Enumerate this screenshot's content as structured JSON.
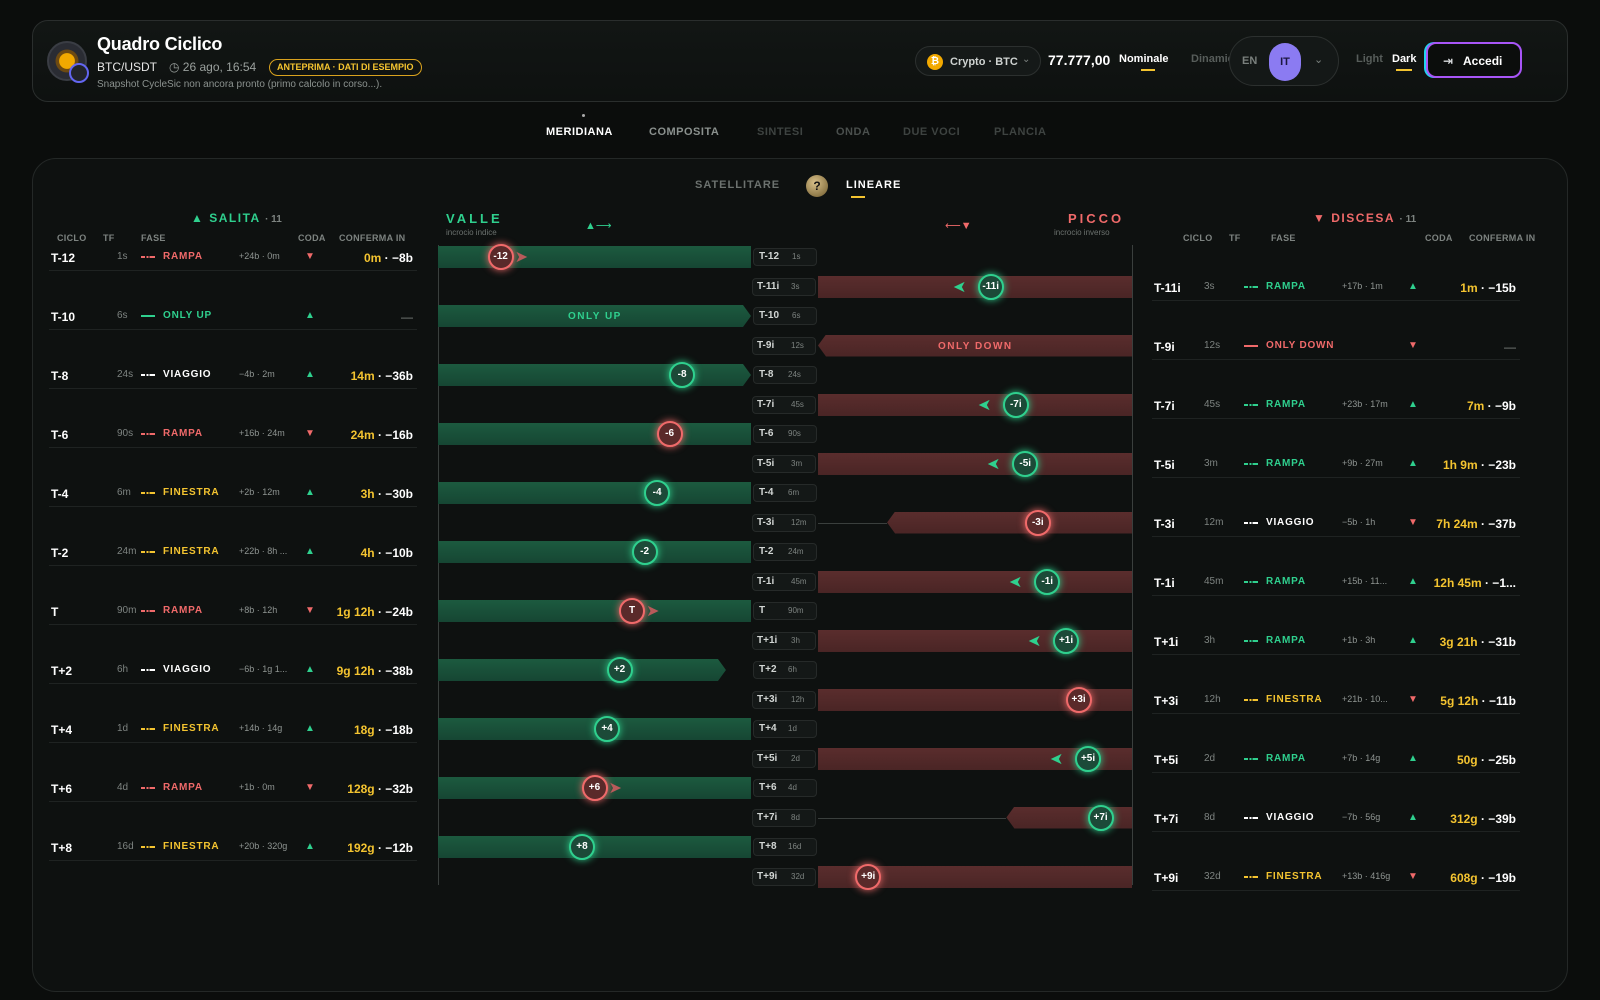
{
  "app": {
    "title": "Quadro Ciclico",
    "pair": "BTC/USDT",
    "datetime": "◷ 26 ago, 16:54",
    "badge": "ANTEPRIMA · DATI DI ESEMPIO",
    "notice": "Snapshot CycleSic non ancora pronto (primo calcolo in corso...)."
  },
  "market": {
    "label": "Crypto · BTC",
    "price": "77.777,00",
    "nominal": "Nominale",
    "dynamic": "Dinamico"
  },
  "lang": {
    "en": "EN",
    "it": "IT"
  },
  "theme": {
    "light": "Light",
    "dark": "Dark"
  },
  "login": "Accedi",
  "tabs": [
    "MERIDIANA",
    "COMPOSITA",
    "SINTESI",
    "ONDA",
    "DUE VOCI",
    "PLANCIA"
  ],
  "modes": {
    "satellite": "SATELLITARE",
    "help": "?",
    "linear": "LINEARE"
  },
  "left": {
    "title": "SALITA",
    "count": "· 11",
    "up": "▲"
  },
  "right": {
    "title": "DISCESA",
    "count": "· 11",
    "down": "▼"
  },
  "cols": {
    "ciclo": "CICLO",
    "tf": "TF",
    "fase": "FASE",
    "coda": "CODA",
    "conferma": "CONFERMA IN"
  },
  "center": {
    "valle": "VALLE",
    "valle_sub": "incrocio indice",
    "picco": "PICCO",
    "picco_sub": "incrocio inverso",
    "arrow_l": "▲⟶",
    "arrow_r": "⟵▼"
  },
  "colors": {
    "up": "#2fd08e",
    "down": "#f06a6a",
    "gold": "#f4c430",
    "white": "#ffffff"
  },
  "salita": [
    {
      "c": "T-12",
      "tf": "1s",
      "ph": "RAMPA",
      "pc": "down",
      "det": "+24b · 0m",
      "tail": "down",
      "t": "0m",
      "b": " · −8b",
      "mk": "-12",
      "mc": "down",
      "lbl": "T-12",
      "lt": "1s",
      "fill": 1,
      "arr": "down",
      "mkp": 0.2,
      "band": "full"
    },
    {
      "c": "T-10",
      "tf": "6s",
      "ph": "ONLY UP",
      "pc": "up",
      "det": "",
      "tail": "up",
      "t": "",
      "b": "—",
      "mk": "",
      "mc": "",
      "lbl": "T-10",
      "lt": "6s",
      "fill": 1,
      "arr": "",
      "mkp": 0,
      "band": "only",
      "bt": "ONLY UP"
    },
    {
      "c": "T-8",
      "tf": "24s",
      "ph": "VIAGGIO",
      "pc": "white",
      "det": "−4b · 2m",
      "tail": "up",
      "t": "14m",
      "b": " · −36b",
      "mk": "-8",
      "mc": "up",
      "lbl": "T-8",
      "lt": "24s",
      "fill": 1,
      "arr": "",
      "mkp": 0.78,
      "band": "arrowhead"
    },
    {
      "c": "T-6",
      "tf": "90s",
      "ph": "RAMPA",
      "pc": "down",
      "det": "+16b · 24m",
      "tail": "down",
      "t": "24m",
      "b": " · −16b",
      "mk": "-6",
      "mc": "down",
      "lbl": "T-6",
      "lt": "90s",
      "fill": 1,
      "arr": "",
      "mkp": 0.74,
      "band": "full"
    },
    {
      "c": "T-4",
      "tf": "6m",
      "ph": "FINESTRA",
      "pc": "gold",
      "det": "+2b · 12m",
      "tail": "up",
      "t": "3h",
      "b": " · −30b",
      "mk": "-4",
      "mc": "up",
      "lbl": "T-4",
      "lt": "6m",
      "fill": 1,
      "arr": "",
      "mkp": 0.7,
      "band": "full"
    },
    {
      "c": "T-2",
      "tf": "24m",
      "ph": "FINESTRA",
      "pc": "gold",
      "det": "+22b · 8h ...",
      "tail": "up",
      "t": "4h",
      "b": " · −10b",
      "mk": "-2",
      "mc": "up",
      "lbl": "T-2",
      "lt": "24m",
      "fill": 1,
      "arr": "",
      "mkp": 0.66,
      "band": "full"
    },
    {
      "c": "T",
      "tf": "90m",
      "ph": "RAMPA",
      "pc": "down",
      "det": "+8b · 12h",
      "tail": "down",
      "t": "1g 12h",
      "b": " · −24b",
      "mk": "T",
      "mc": "down",
      "lbl": "T",
      "lt": "90m",
      "fill": 1,
      "arr": "down",
      "mkp": 0.62,
      "band": "full"
    },
    {
      "c": "T+2",
      "tf": "6h",
      "ph": "VIAGGIO",
      "pc": "white",
      "det": "−6b · 1g 1...",
      "tail": "up",
      "t": "9g 12h",
      "b": " · −38b",
      "mk": "+2",
      "mc": "up",
      "lbl": "T+2",
      "lt": "6h",
      "fill": 0.92,
      "arr": "",
      "mkp": 0.58,
      "band": "arrowhead"
    },
    {
      "c": "T+4",
      "tf": "1d",
      "ph": "FINESTRA",
      "pc": "gold",
      "det": "+14b · 14g",
      "tail": "up",
      "t": "18g",
      "b": " · −18b",
      "mk": "+4",
      "mc": "up",
      "lbl": "T+4",
      "lt": "1d",
      "fill": 1,
      "arr": "",
      "mkp": 0.54,
      "band": "full"
    },
    {
      "c": "T+6",
      "tf": "4d",
      "ph": "RAMPA",
      "pc": "down",
      "det": "+1b · 0m",
      "tail": "down",
      "t": "128g",
      "b": " · −32b",
      "mk": "+6",
      "mc": "down",
      "lbl": "T+6",
      "lt": "4d",
      "fill": 1,
      "arr": "down",
      "mkp": 0.5,
      "band": "full"
    },
    {
      "c": "T+8",
      "tf": "16d",
      "ph": "FINESTRA",
      "pc": "gold",
      "det": "+20b · 320g",
      "tail": "up",
      "t": "192g",
      "b": " · −12b",
      "mk": "+8",
      "mc": "up",
      "lbl": "T+8",
      "lt": "16d",
      "fill": 1,
      "arr": "",
      "mkp": 0.46,
      "band": "full"
    }
  ],
  "discesa": [
    {
      "c": "T-11i",
      "tf": "3s",
      "ph": "RAMPA",
      "pc": "up",
      "det": "+17b · 1m",
      "tail": "up",
      "t": "1m",
      "b": " · −15b",
      "mk": "-11i",
      "mc": "up",
      "lbl": "T-11i",
      "lt": "3s",
      "fill": 1,
      "arr": "up",
      "mkp": 0.55,
      "band": "full"
    },
    {
      "c": "T-9i",
      "tf": "12s",
      "ph": "ONLY DOWN",
      "pc": "down",
      "det": "",
      "tail": "down",
      "t": "",
      "b": "—",
      "mk": "",
      "mc": "",
      "lbl": "T-9i",
      "lt": "12s",
      "fill": 1,
      "arr": "",
      "mkp": 0,
      "band": "only",
      "bt": "ONLY DOWN"
    },
    {
      "c": "T-7i",
      "tf": "45s",
      "ph": "RAMPA",
      "pc": "up",
      "det": "+23b · 17m",
      "tail": "up",
      "t": "7m",
      "b": " · −9b",
      "mk": "-7i",
      "mc": "up",
      "lbl": "T-7i",
      "lt": "45s",
      "fill": 1,
      "arr": "up",
      "mkp": 0.63,
      "band": "full"
    },
    {
      "c": "T-5i",
      "tf": "3m",
      "ph": "RAMPA",
      "pc": "up",
      "det": "+9b · 27m",
      "tail": "up",
      "t": "1h 9m",
      "b": " · −23b",
      "mk": "-5i",
      "mc": "up",
      "lbl": "T-5i",
      "lt": "3m",
      "fill": 1,
      "arr": "up",
      "mkp": 0.66,
      "band": "full"
    },
    {
      "c": "T-3i",
      "tf": "12m",
      "ph": "VIAGGIO",
      "pc": "white",
      "det": "−5b · 1h",
      "tail": "down",
      "t": "7h 24m",
      "b": " · −37b",
      "mk": "-3i",
      "mc": "down",
      "lbl": "T-3i",
      "lt": "12m",
      "fill": 0.78,
      "arr": "",
      "mkp": 0.7,
      "band": "arrowtail"
    },
    {
      "c": "T-1i",
      "tf": "45m",
      "ph": "RAMPA",
      "pc": "up",
      "det": "+15b · 11...",
      "tail": "up",
      "t": "12h 45m",
      "b": " · −1...",
      "mk": "-1i",
      "mc": "up",
      "lbl": "T-1i",
      "lt": "45m",
      "fill": 1,
      "arr": "up",
      "mkp": 0.73,
      "band": "full"
    },
    {
      "c": "T+1i",
      "tf": "3h",
      "ph": "RAMPA",
      "pc": "up",
      "det": "+1b · 3h",
      "tail": "up",
      "t": "3g 21h",
      "b": " · −31b",
      "mk": "+1i",
      "mc": "up",
      "lbl": "T+1i",
      "lt": "3h",
      "fill": 1,
      "arr": "up",
      "mkp": 0.79,
      "band": "full"
    },
    {
      "c": "T+3i",
      "tf": "12h",
      "ph": "FINESTRA",
      "pc": "gold",
      "det": "+21b · 10...",
      "tail": "down",
      "t": "5g 12h",
      "b": " · −11b",
      "mk": "+3i",
      "mc": "down",
      "lbl": "T+3i",
      "lt": "12h",
      "fill": 1,
      "arr": "",
      "mkp": 0.83,
      "band": "full"
    },
    {
      "c": "T+5i",
      "tf": "2d",
      "ph": "RAMPA",
      "pc": "up",
      "det": "+7b · 14g",
      "tail": "up",
      "t": "50g",
      "b": " · −25b",
      "mk": "+5i",
      "mc": "up",
      "lbl": "T+5i",
      "lt": "2d",
      "fill": 1,
      "arr": "up",
      "mkp": 0.86,
      "band": "full"
    },
    {
      "c": "T+7i",
      "tf": "8d",
      "ph": "VIAGGIO",
      "pc": "white",
      "det": "−7b · 56g",
      "tail": "up",
      "t": "312g",
      "b": " · −39b",
      "mk": "+7i",
      "mc": "up",
      "lbl": "T+7i",
      "lt": "8d",
      "fill": 0.4,
      "arr": "",
      "mkp": 0.9,
      "band": "arrowtail"
    },
    {
      "c": "T+9i",
      "tf": "32d",
      "ph": "FINESTRA",
      "pc": "gold",
      "det": "+13b · 416g",
      "tail": "down",
      "t": "608g",
      "b": " · −19b",
      "mk": "+9i",
      "mc": "down",
      "lbl": "T+9i",
      "lt": "32d",
      "fill": 1,
      "arr": "",
      "mkp": 0.16,
      "band": "full"
    }
  ]
}
